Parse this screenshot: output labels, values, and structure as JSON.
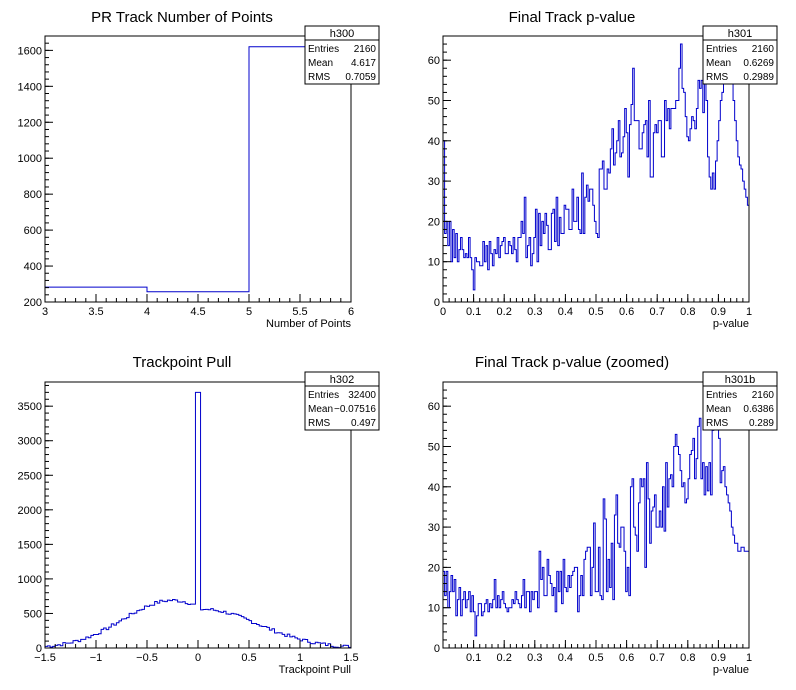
{
  "colors": {
    "line": "#0000cc",
    "axis": "#000000",
    "background": "#ffffff"
  },
  "chart_data": [
    {
      "type": "histogram",
      "title": "PR Track Number of Points",
      "xlabel": "Number of Points",
      "ylabel": "",
      "xlim": [
        3,
        6
      ],
      "ylim": [
        200,
        1680
      ],
      "xticks": [
        "3",
        "3.5",
        "4",
        "4.5",
        "5",
        "5.5",
        "6"
      ],
      "yticks": [
        "200",
        "400",
        "600",
        "800",
        "1000",
        "1200",
        "1400",
        "1600"
      ],
      "bins": [
        {
          "x0": 3,
          "x1": 4,
          "y": 283
        },
        {
          "x0": 4,
          "x1": 5,
          "y": 257
        },
        {
          "x0": 5,
          "x1": 6,
          "y": 1620
        }
      ],
      "stats": {
        "name": "h300",
        "rows": [
          [
            "Entries",
            "2160"
          ],
          [
            "Mean",
            "4.617"
          ],
          [
            "RMS",
            "0.7059"
          ]
        ]
      }
    },
    {
      "type": "histogram",
      "title": "Final Track p-value",
      "xlabel": "p-value",
      "ylabel": "",
      "xlim": [
        0,
        1
      ],
      "ylim": [
        0,
        66
      ],
      "xticks": [
        "0",
        "0.1",
        "0.2",
        "0.3",
        "0.4",
        "0.5",
        "0.6",
        "0.7",
        "0.8",
        "0.9",
        "1"
      ],
      "yticks": [
        "0",
        "10",
        "20",
        "30",
        "40",
        "50",
        "60"
      ],
      "values": [
        40,
        17,
        20,
        14,
        20,
        10,
        18,
        11,
        17,
        10,
        13,
        16,
        13,
        11,
        12,
        11,
        16,
        11,
        8,
        3,
        11,
        10,
        10,
        9,
        9,
        15,
        10,
        14,
        8,
        15,
        12,
        9,
        13,
        12,
        16,
        11,
        14,
        15,
        16,
        12,
        12,
        15,
        14,
        12,
        16,
        13,
        10,
        16,
        16,
        20,
        17,
        26,
        11,
        14,
        16,
        9,
        12,
        16,
        23,
        10,
        22,
        14,
        20,
        17,
        22,
        19,
        13,
        13,
        22,
        23,
        15,
        26,
        14,
        21,
        17,
        17,
        24,
        23,
        23,
        18,
        18,
        28,
        20,
        20,
        26,
        18,
        17,
        32,
        17,
        26,
        29,
        25,
        28,
        28,
        24,
        20,
        17,
        16,
        33,
        33,
        35,
        28,
        28,
        33,
        32,
        38,
        43,
        34,
        37,
        40,
        45,
        36,
        37,
        41,
        48,
        42,
        31,
        44,
        49,
        58,
        45,
        45,
        45,
        38,
        38,
        42,
        44,
        45,
        36,
        50,
        31,
        31,
        42,
        44,
        42,
        45,
        45,
        36,
        36,
        50,
        45,
        48,
        43,
        48,
        48,
        48,
        50,
        50,
        58,
        64,
        53,
        52,
        46,
        41,
        40,
        43,
        46,
        45,
        43,
        48,
        55,
        53,
        55,
        47,
        65,
        50,
        36,
        31,
        28,
        32,
        28,
        35,
        40,
        45,
        50,
        52,
        55,
        58,
        57,
        59,
        60,
        55,
        50,
        45,
        40,
        36,
        34,
        33,
        30,
        28,
        26,
        24
      ],
      "stats": {
        "name": "h301",
        "rows": [
          [
            "Entries",
            "2160"
          ],
          [
            "Mean",
            "0.6269"
          ],
          [
            "RMS",
            "0.2989"
          ]
        ]
      }
    },
    {
      "type": "histogram",
      "title": "Trackpoint Pull",
      "xlabel": "Trackpoint Pull",
      "ylabel": "",
      "xlim": [
        -1.5,
        1.5
      ],
      "ylim": [
        0,
        3850
      ],
      "xticks": [
        "−1.5",
        "−1",
        "−0.5",
        "0",
        "0.5",
        "1",
        "1.5"
      ],
      "yticks": [
        "0",
        "500",
        "1000",
        "1500",
        "2000",
        "2500",
        "3000",
        "3500"
      ],
      "spike": {
        "x": 0,
        "y": 3700
      },
      "stats": {
        "name": "h302",
        "rows": [
          [
            "Entries",
            "32400"
          ],
          [
            "Mean",
            "−0.07516"
          ],
          [
            "RMS",
            "0.497"
          ]
        ]
      }
    },
    {
      "type": "histogram",
      "title": "Final Track p-value (zoomed)",
      "xlabel": "p-value",
      "ylabel": "",
      "xlim": [
        0,
        1
      ],
      "ylim": [
        0,
        66
      ],
      "xticks": [
        "0.1",
        "0.2",
        "0.3",
        "0.4",
        "0.5",
        "0.6",
        "0.7",
        "0.8",
        "0.9",
        "1"
      ],
      "yticks": [
        "0",
        "10",
        "20",
        "30",
        "40",
        "50",
        "60"
      ],
      "values": [
        19,
        13,
        19,
        10,
        14,
        18,
        14,
        17,
        8,
        12,
        15,
        8,
        12,
        14,
        10,
        12,
        14,
        9,
        13,
        9,
        3,
        8,
        11,
        11,
        8,
        9,
        11,
        12,
        9,
        11,
        10,
        12,
        17,
        10,
        13,
        10,
        12,
        14,
        11,
        10,
        9,
        10,
        10,
        12,
        11,
        14,
        12,
        11,
        10,
        13,
        17,
        10,
        14,
        14,
        9,
        14,
        12,
        14,
        14,
        10,
        24,
        17,
        20,
        13,
        13,
        22,
        18,
        16,
        13,
        15,
        9,
        19,
        14,
        19,
        11,
        22,
        15,
        14,
        18,
        15,
        18,
        19,
        20,
        20,
        9,
        13,
        18,
        13,
        22,
        24,
        25,
        25,
        13,
        20,
        31,
        14,
        14,
        25,
        13,
        12,
        37,
        32,
        14,
        22,
        15,
        26,
        12,
        33,
        38,
        26,
        25,
        30,
        30,
        24,
        14,
        20,
        13,
        40,
        42,
        30,
        28,
        24,
        36,
        42,
        40,
        42,
        20,
        46,
        37,
        26,
        34,
        35,
        38,
        30,
        30,
        34,
        30,
        40,
        29,
        46,
        35,
        42,
        43,
        40,
        50,
        53,
        50,
        48,
        44,
        40,
        41,
        36,
        37,
        42,
        48,
        49,
        52,
        42,
        47,
        55,
        57,
        42,
        46,
        38,
        45,
        39,
        46,
        38,
        54,
        58,
        55,
        60,
        52,
        41,
        44,
        45,
        40,
        38,
        36,
        34,
        30,
        28,
        26,
        26,
        24,
        24,
        25,
        25,
        24,
        24,
        24
      ],
      "stats": {
        "name": "h301b",
        "rows": [
          [
            "Entries",
            "2160"
          ],
          [
            "Mean",
            "0.6386"
          ],
          [
            "RMS",
            "0.289"
          ]
        ]
      }
    }
  ]
}
